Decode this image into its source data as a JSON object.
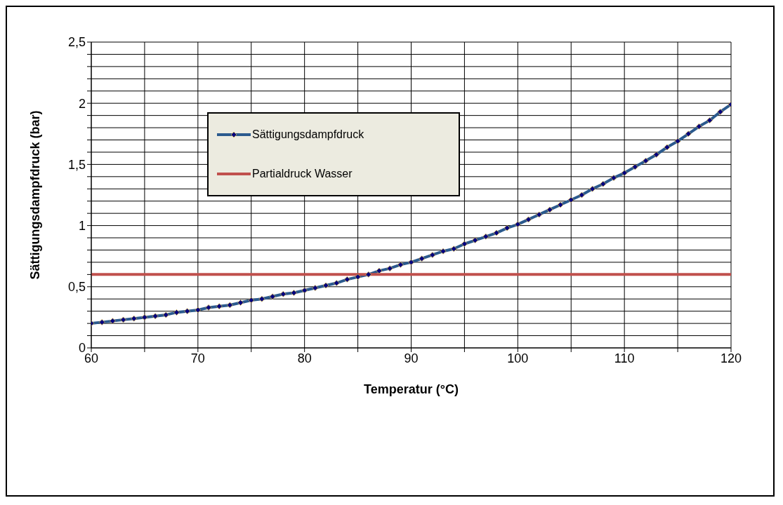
{
  "chart_data": {
    "type": "line",
    "xlabel": "Temperatur (°C)",
    "ylabel": "Sättigungsdampfdruck (bar)",
    "xlim": [
      60,
      120
    ],
    "xticks": [
      60,
      {
        "value": 65,
        "label": null
      },
      70,
      {
        "value": 75,
        "label": null
      },
      80,
      {
        "value": 85,
        "label": null
      },
      90,
      {
        "value": 95,
        "label": null
      },
      100,
      {
        "value": 105,
        "label": null
      },
      110,
      {
        "value": 115,
        "label": null
      },
      120
    ],
    "ylim": [
      0,
      2.5
    ],
    "yticks": [
      0,
      {
        "value": 0.1,
        "label": null
      },
      {
        "value": 0.2,
        "label": null
      },
      {
        "value": 0.3,
        "label": null
      },
      {
        "value": 0.4,
        "label": null
      },
      {
        "value": 0.5,
        "label": "0,5"
      },
      {
        "value": 0.6,
        "label": null
      },
      {
        "value": 0.7,
        "label": null
      },
      {
        "value": 0.8,
        "label": null
      },
      {
        "value": 0.9,
        "label": null
      },
      1,
      {
        "value": 1.1,
        "label": null
      },
      {
        "value": 1.2,
        "label": null
      },
      {
        "value": 1.3,
        "label": null
      },
      {
        "value": 1.4,
        "label": null
      },
      {
        "value": 1.5,
        "label": "1,5"
      },
      {
        "value": 1.6,
        "label": null
      },
      {
        "value": 1.7,
        "label": null
      },
      {
        "value": 1.8,
        "label": null
      },
      {
        "value": 1.9,
        "label": null
      },
      2,
      {
        "value": 2.1,
        "label": null
      },
      {
        "value": 2.2,
        "label": null
      },
      {
        "value": 2.3,
        "label": null
      },
      {
        "value": 2.4,
        "label": null
      },
      {
        "value": 2.5,
        "label": "2,5"
      }
    ],
    "grid": true,
    "legend": "top left",
    "series": [
      {
        "name": "Sättigungsdampfdruck",
        "color": "#2b5a8e",
        "marker": "diamond",
        "x": [
          60,
          61,
          62,
          63,
          64,
          65,
          66,
          67,
          68,
          69,
          70,
          71,
          72,
          73,
          74,
          75,
          76,
          77,
          78,
          79,
          80,
          81,
          82,
          83,
          84,
          85,
          86,
          87,
          88,
          89,
          90,
          91,
          92,
          93,
          94,
          95,
          96,
          97,
          98,
          99,
          100,
          101,
          102,
          103,
          104,
          105,
          106,
          107,
          108,
          109,
          110,
          111,
          112,
          113,
          114,
          115,
          116,
          117,
          118,
          119,
          120
        ],
        "values": [
          0.2,
          0.21,
          0.22,
          0.23,
          0.24,
          0.25,
          0.26,
          0.27,
          0.29,
          0.3,
          0.31,
          0.33,
          0.34,
          0.35,
          0.37,
          0.39,
          0.4,
          0.42,
          0.44,
          0.45,
          0.47,
          0.49,
          0.51,
          0.53,
          0.56,
          0.58,
          0.6,
          0.63,
          0.65,
          0.68,
          0.7,
          0.73,
          0.76,
          0.79,
          0.81,
          0.85,
          0.88,
          0.91,
          0.94,
          0.98,
          1.01,
          1.05,
          1.09,
          1.13,
          1.17,
          1.21,
          1.25,
          1.3,
          1.34,
          1.39,
          1.43,
          1.48,
          1.53,
          1.58,
          1.64,
          1.69,
          1.75,
          1.81,
          1.86,
          1.93,
          1.99
        ]
      },
      {
        "name": "Partialdruck Wasser",
        "color": "#c0504d",
        "marker": "none",
        "x": [
          60,
          120
        ],
        "values": [
          0.6,
          0.6
        ]
      }
    ]
  }
}
